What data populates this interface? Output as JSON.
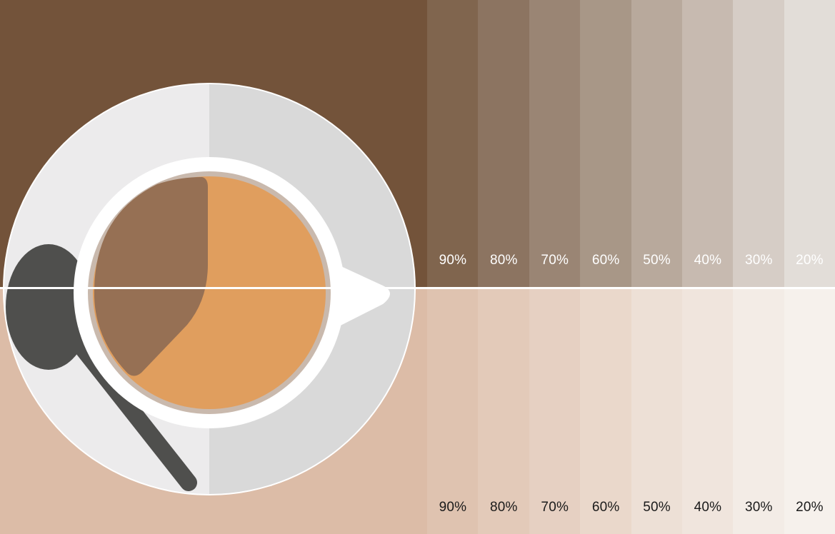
{
  "colors": {
    "dark_base": "#73533a",
    "light_base": "#dcbca7",
    "divider": "#ffffff",
    "saucer_left": "#ecebec",
    "saucer_right": "#d9d9d9",
    "cup_rim": "#ffffff",
    "cup_inner_ring": "#c9b9ad",
    "coffee": "#e09e5e",
    "coffee_shadow": "#967054",
    "spoon": "#4f4f4d"
  },
  "dark_tints": {
    "swatches": [
      {
        "label": "90%",
        "color": "#80654e"
      },
      {
        "label": "80%",
        "color": "#8c7461"
      },
      {
        "label": "70%",
        "color": "#9a8574"
      },
      {
        "label": "60%",
        "color": "#a89787"
      },
      {
        "label": "50%",
        "color": "#b8a99c"
      },
      {
        "label": "40%",
        "color": "#c7bab0"
      },
      {
        "label": "30%",
        "color": "#d6cdc6"
      },
      {
        "label": "20%",
        "color": "#e2ddd8"
      }
    ]
  },
  "light_tints": {
    "swatches": [
      {
        "label": "90%",
        "color": "#dfc3b0"
      },
      {
        "label": "80%",
        "color": "#e3cab9"
      },
      {
        "label": "70%",
        "color": "#e6d0c2"
      },
      {
        "label": "60%",
        "color": "#ead8cb"
      },
      {
        "label": "50%",
        "color": "#ede0d6"
      },
      {
        "label": "40%",
        "color": "#f0e5dd"
      },
      {
        "label": "30%",
        "color": "#f3ece6"
      },
      {
        "label": "20%",
        "color": "#f6f1ec"
      }
    ]
  }
}
